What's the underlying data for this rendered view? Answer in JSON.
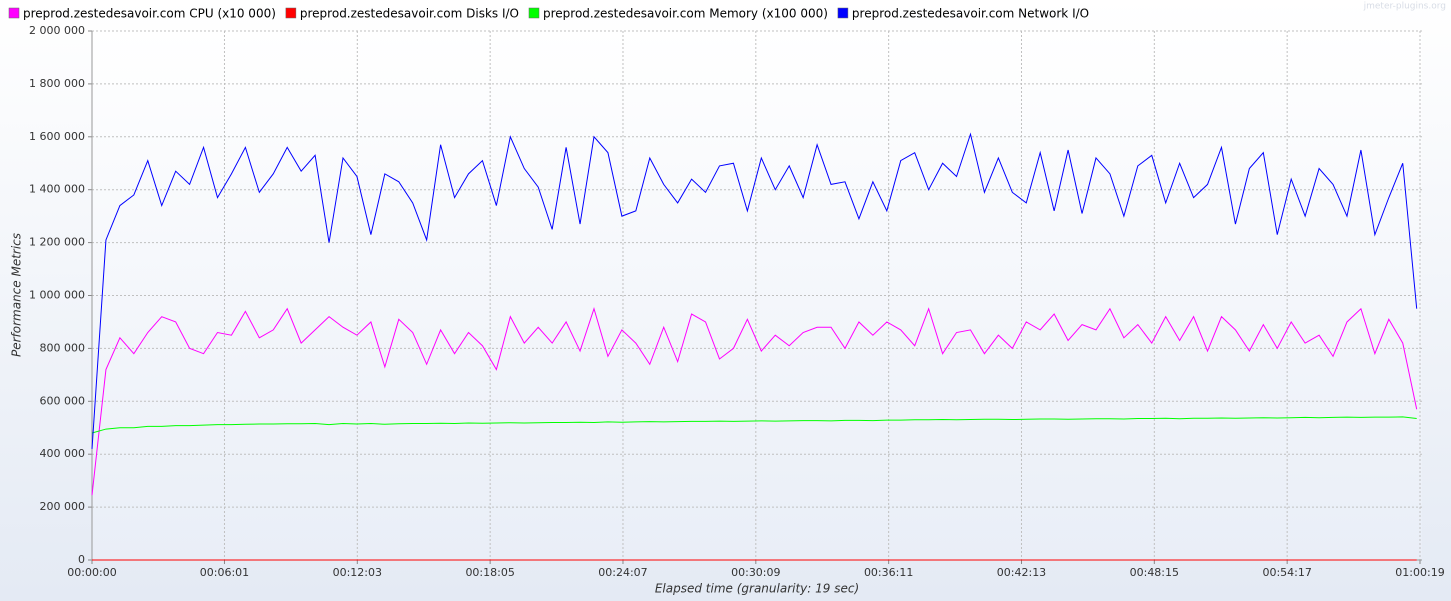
{
  "chart_data": {
    "type": "line",
    "watermark": "jmeter-plugins.org",
    "xlabel": "Elapsed time (granularity: 19 sec)",
    "ylabel": "Performance Metrics",
    "grid": true,
    "legend": "top",
    "xlim": [
      0,
      3619
    ],
    "xticks": [
      {
        "value": 0,
        "label": "00:00:00"
      },
      {
        "value": 361,
        "label": "00:06:01"
      },
      {
        "value": 723,
        "label": "00:12:03"
      },
      {
        "value": 1085,
        "label": "00:18:05"
      },
      {
        "value": 1447,
        "label": "00:24:07"
      },
      {
        "value": 1809,
        "label": "00:30:09"
      },
      {
        "value": 2171,
        "label": "00:36:11"
      },
      {
        "value": 2533,
        "label": "00:42:13"
      },
      {
        "value": 2895,
        "label": "00:48:15"
      },
      {
        "value": 3257,
        "label": "00:54:17"
      },
      {
        "value": 3619,
        "label": "01:00:19"
      }
    ],
    "ylim": [
      0,
      2000000
    ],
    "yticks": [
      0,
      {
        "value": 200000,
        "label": "200 000"
      },
      {
        "value": 400000,
        "label": "400 000"
      },
      {
        "value": 600000,
        "label": "600 000"
      },
      {
        "value": 800000,
        "label": "800 000"
      },
      {
        "value": 1000000,
        "label": "1 000 000"
      },
      {
        "value": 1200000,
        "label": "1 200 000"
      },
      {
        "value": 1400000,
        "label": "1 400 000"
      },
      {
        "value": 1600000,
        "label": "1 600 000"
      },
      {
        "value": 1800000,
        "label": "1 800 000"
      },
      {
        "value": 2000000,
        "label": "2 000 000"
      }
    ],
    "x": [
      0,
      38,
      76,
      114,
      152,
      190,
      228,
      266,
      304,
      342,
      380,
      418,
      456,
      494,
      532,
      570,
      608,
      646,
      684,
      722,
      760,
      798,
      836,
      874,
      912,
      950,
      988,
      1026,
      1064,
      1102,
      1140,
      1178,
      1216,
      1254,
      1292,
      1330,
      1368,
      1406,
      1444,
      1482,
      1520,
      1558,
      1596,
      1634,
      1672,
      1710,
      1748,
      1786,
      1824,
      1862,
      1900,
      1938,
      1976,
      2014,
      2052,
      2090,
      2128,
      2166,
      2204,
      2242,
      2280,
      2318,
      2356,
      2394,
      2432,
      2470,
      2508,
      2546,
      2584,
      2622,
      2660,
      2698,
      2736,
      2774,
      2812,
      2850,
      2888,
      2926,
      2964,
      3002,
      3040,
      3078,
      3116,
      3154,
      3192,
      3230,
      3268,
      3306,
      3344,
      3382,
      3420,
      3458,
      3496,
      3534,
      3572,
      3610
    ],
    "series": [
      {
        "name": "preprod.zestedesavoir.com CPU (x10 000)",
        "color": "#ff00ff",
        "values": [
          245000,
          720000,
          840000,
          780000,
          860000,
          920000,
          900000,
          800000,
          780000,
          860000,
          850000,
          940000,
          840000,
          870000,
          950000,
          820000,
          870000,
          920000,
          880000,
          850000,
          900000,
          730000,
          910000,
          860000,
          740000,
          870000,
          780000,
          860000,
          810000,
          720000,
          920000,
          820000,
          880000,
          820000,
          900000,
          790000,
          950000,
          770000,
          870000,
          820000,
          740000,
          880000,
          750000,
          930000,
          900000,
          760000,
          800000,
          910000,
          790000,
          850000,
          810000,
          860000,
          880000,
          880000,
          800000,
          900000,
          850000,
          900000,
          870000,
          810000,
          950000,
          780000,
          860000,
          870000,
          780000,
          850000,
          800000,
          900000,
          870000,
          930000,
          830000,
          890000,
          870000,
          950000,
          840000,
          890000,
          820000,
          920000,
          830000,
          920000,
          790000,
          920000,
          870000,
          790000,
          890000,
          800000,
          900000,
          820000,
          850000,
          770000,
          900000,
          950000,
          780000,
          910000,
          820000,
          570000
        ]
      },
      {
        "name": "preprod.zestedesavoir.com Disks I/O",
        "color": "#ff0000",
        "values": [
          0,
          0,
          0,
          0,
          0,
          0,
          0,
          0,
          0,
          0,
          0,
          0,
          0,
          0,
          0,
          0,
          0,
          0,
          0,
          0,
          0,
          0,
          0,
          0,
          0,
          0,
          0,
          0,
          0,
          0,
          0,
          0,
          0,
          0,
          0,
          0,
          0,
          0,
          0,
          0,
          0,
          0,
          0,
          0,
          0,
          0,
          0,
          0,
          0,
          0,
          0,
          0,
          0,
          0,
          0,
          0,
          0,
          0,
          0,
          0,
          0,
          0,
          0,
          0,
          0,
          0,
          0,
          0,
          0,
          0,
          0,
          0,
          0,
          0,
          0,
          0,
          0,
          0,
          0,
          0,
          0,
          0,
          0,
          0,
          0,
          0,
          0,
          0,
          0,
          0,
          0,
          0,
          0,
          0,
          0,
          0
        ]
      },
      {
        "name": "preprod.zestedesavoir.com Memory (x100 000)",
        "color": "#00ff00",
        "values": [
          480000,
          495000,
          500000,
          500000,
          505000,
          505000,
          508000,
          508000,
          510000,
          512000,
          512000,
          513000,
          514000,
          514000,
          515000,
          515000,
          516000,
          512000,
          516000,
          514000,
          516000,
          513000,
          515000,
          516000,
          516000,
          517000,
          516000,
          518000,
          517000,
          518000,
          519000,
          518000,
          519000,
          520000,
          520000,
          521000,
          520000,
          522000,
          521000,
          522000,
          523000,
          522000,
          523000,
          524000,
          524000,
          525000,
          524000,
          525000,
          526000,
          525000,
          526000,
          527000,
          527000,
          526000,
          528000,
          528000,
          527000,
          529000,
          529000,
          530000,
          530000,
          531000,
          530000,
          531000,
          532000,
          532000,
          531000,
          532000,
          533000,
          533000,
          532000,
          533000,
          534000,
          534000,
          533000,
          535000,
          535000,
          536000,
          534000,
          536000,
          536000,
          537000,
          536000,
          537000,
          538000,
          537000,
          538000,
          539000,
          538000,
          539000,
          540000,
          539000,
          540000,
          540000,
          541000,
          535000
        ]
      },
      {
        "name": "preprod.zestedesavoir.com Network I/O",
        "color": "#0000ff",
        "values": [
          420000,
          1210000,
          1340000,
          1380000,
          1510000,
          1340000,
          1470000,
          1420000,
          1560000,
          1370000,
          1460000,
          1560000,
          1390000,
          1460000,
          1560000,
          1470000,
          1530000,
          1200000,
          1520000,
          1450000,
          1230000,
          1460000,
          1430000,
          1350000,
          1210000,
          1570000,
          1370000,
          1460000,
          1510000,
          1340000,
          1600000,
          1480000,
          1410000,
          1250000,
          1560000,
          1270000,
          1600000,
          1540000,
          1300000,
          1320000,
          1520000,
          1420000,
          1350000,
          1440000,
          1390000,
          1490000,
          1500000,
          1320000,
          1520000,
          1400000,
          1490000,
          1370000,
          1570000,
          1420000,
          1430000,
          1290000,
          1430000,
          1320000,
          1510000,
          1540000,
          1400000,
          1500000,
          1450000,
          1610000,
          1390000,
          1520000,
          1390000,
          1350000,
          1540000,
          1320000,
          1550000,
          1310000,
          1520000,
          1460000,
          1300000,
          1490000,
          1530000,
          1350000,
          1500000,
          1370000,
          1420000,
          1560000,
          1270000,
          1480000,
          1540000,
          1230000,
          1440000,
          1300000,
          1480000,
          1420000,
          1300000,
          1550000,
          1230000,
          1370000,
          1500000,
          950000
        ]
      }
    ]
  }
}
